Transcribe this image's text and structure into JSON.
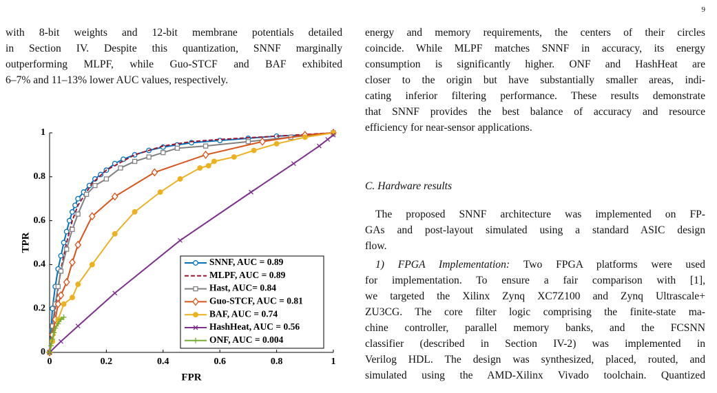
{
  "page_number": "9",
  "left_column": {
    "lines": [
      "with 8-bit weights and 12-bit membrane potentials detailed",
      "in Section IV. Despite this quantization, SNNF marginally",
      "outperforming MLPF, while Guo-STCF and BAF exhibited",
      "6–7% and 11–13% lower AUC values, respectively."
    ]
  },
  "chart_data": {
    "type": "line",
    "x_label": "FPR",
    "y_label": "TPR",
    "xlim": [
      0,
      1
    ],
    "ylim": [
      0,
      1
    ],
    "xticks": [
      0,
      0.2,
      0.4,
      0.6,
      0.8,
      1
    ],
    "yticks": [
      0,
      0.2,
      0.4,
      0.6,
      0.8,
      1
    ],
    "legend": "lower right",
    "series": [
      {
        "name": "SNNF, AUC = 0.89",
        "color": "#0072bd",
        "marker": "open-circle",
        "dash": false,
        "x": [
          0,
          0.01,
          0.02,
          0.03,
          0.04,
          0.05,
          0.06,
          0.07,
          0.08,
          0.09,
          0.1,
          0.12,
          0.14,
          0.16,
          0.18,
          0.2,
          0.23,
          0.26,
          0.3,
          0.35,
          0.4,
          0.45,
          0.5,
          0.6,
          0.7,
          0.8,
          0.9,
          1
        ],
        "values": [
          0,
          0.2,
          0.3,
          0.38,
          0.44,
          0.5,
          0.55,
          0.6,
          0.64,
          0.67,
          0.7,
          0.73,
          0.76,
          0.79,
          0.81,
          0.83,
          0.86,
          0.88,
          0.9,
          0.92,
          0.935,
          0.945,
          0.955,
          0.965,
          0.975,
          0.985,
          0.99,
          1
        ]
      },
      {
        "name": "MLPF, AUC = 0.89",
        "color": "#a2142f",
        "marker": "none",
        "dash": true,
        "x": [
          0,
          0.02,
          0.04,
          0.06,
          0.08,
          0.1,
          0.15,
          0.2,
          0.3,
          0.4,
          0.5,
          0.6,
          0.8,
          1
        ],
        "values": [
          0,
          0.2,
          0.38,
          0.5,
          0.6,
          0.67,
          0.77,
          0.83,
          0.9,
          0.94,
          0.96,
          0.97,
          0.985,
          1
        ]
      },
      {
        "name": "Hast, AUC= 0.84",
        "color": "#808080",
        "marker": "open-square",
        "dash": false,
        "x": [
          0,
          0.01,
          0.02,
          0.03,
          0.04,
          0.06,
          0.08,
          0.1,
          0.13,
          0.16,
          0.2,
          0.25,
          0.3,
          0.35,
          0.4,
          0.45,
          0.55,
          0.7,
          0.85,
          1
        ],
        "values": [
          0,
          0.12,
          0.22,
          0.3,
          0.37,
          0.47,
          0.56,
          0.63,
          0.72,
          0.76,
          0.79,
          0.84,
          0.87,
          0.89,
          0.91,
          0.93,
          0.94,
          0.96,
          0.98,
          1
        ]
      },
      {
        "name": "Guo-STCF, AUC = 0.81",
        "color": "#d95319",
        "marker": "open-diamond",
        "dash": false,
        "x": [
          0,
          0.01,
          0.02,
          0.03,
          0.04,
          0.06,
          0.08,
          0.1,
          0.15,
          0.23,
          0.37,
          0.55,
          0.75,
          0.9,
          1
        ],
        "values": [
          0,
          0.08,
          0.15,
          0.22,
          0.26,
          0.32,
          0.41,
          0.49,
          0.62,
          0.71,
          0.82,
          0.9,
          0.96,
          0.99,
          1
        ]
      },
      {
        "name": "BAF, AUC = 0.74",
        "color": "#edb120",
        "marker": "filled-circle",
        "dash": false,
        "x": [
          0,
          0.01,
          0.03,
          0.05,
          0.08,
          0.1,
          0.15,
          0.23,
          0.3,
          0.39,
          0.46,
          0.53,
          0.56,
          0.58,
          0.65,
          0.72,
          0.8,
          0.9,
          1
        ],
        "values": [
          0,
          0.05,
          0.15,
          0.22,
          0.25,
          0.31,
          0.4,
          0.54,
          0.64,
          0.73,
          0.79,
          0.84,
          0.85,
          0.87,
          0.89,
          0.92,
          0.95,
          0.98,
          1
        ]
      },
      {
        "name": "HashHeat, AUC = 0.56",
        "color": "#7e2f8e",
        "marker": "x",
        "dash": false,
        "x": [
          0,
          0.04,
          0.1,
          0.23,
          0.46,
          0.71,
          0.86,
          0.95,
          0.98,
          1
        ],
        "values": [
          0,
          0.05,
          0.12,
          0.27,
          0.51,
          0.73,
          0.86,
          0.94,
          0.97,
          0.99
        ]
      },
      {
        "name": "ONF, AUC = 0.004",
        "color": "#77ac30",
        "marker": "plus",
        "dash": false,
        "x": [
          0,
          0.005,
          0.01,
          0.015,
          0.02,
          0.03,
          0.04,
          0.05
        ],
        "values": [
          0,
          0.03,
          0.06,
          0.09,
          0.11,
          0.13,
          0.15,
          0.16
        ]
      }
    ]
  },
  "right_column": {
    "paragraph_1": {
      "lines": [
        "energy and memory requirements, the centers of their circles",
        "coincide. While MLPF matches SNNF in accuracy, its energy",
        "consumption is significantly higher. ONF and HashHeat are",
        "closer to the origin but have substantially smaller areas, indi-",
        "cating inferior filtering performance. These results demonstrate",
        "that SNNF provides the best balance of accuracy and resource",
        "efficiency for near-sensor applications."
      ]
    },
    "heading": "C. Hardware results",
    "paragraph_2": {
      "lines": [
        "The proposed SNNF architecture was implemented on FP-",
        "GAs and post-layout simulated using a standard ASIC design",
        "flow."
      ]
    },
    "paragraph_3": {
      "run_in": "1) FPGA Implementation:",
      "lines": [
        "Two FPGA platforms were used",
        "for implementation. To ensure a fair comparison with [1],",
        "we targeted the Xilinx Zynq XC7Z100 and Zynq Ultrascale+",
        "ZU3CG. The core filter logic comprising the finite-state ma-",
        "chine controller, parallel memory banks, and the FCSNN",
        "classifier (described in Section IV-2) was implemented in",
        "Verilog HDL. The design was synthesized, placed, routed, and",
        "simulated using the AMD-Xilinx Vivado toolchain. Quantized"
      ]
    }
  }
}
